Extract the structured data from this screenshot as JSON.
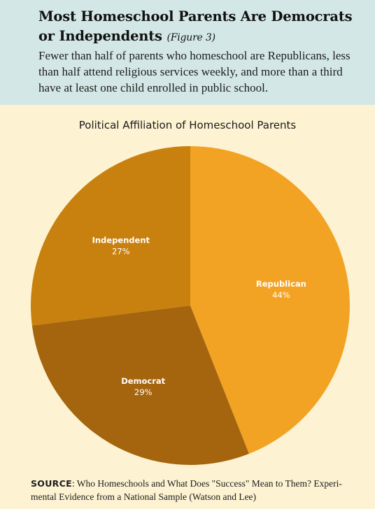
{
  "header": {
    "title": "Most Homeschool Parents Are Democrats or Independents",
    "figure_tag": "(Figure 3)",
    "subtitle": "Fewer than half of parents who homeschool are Republicans, less than half attend religious services weekly, and more than a third have at least one child enrolled in public school."
  },
  "chart_data": {
    "type": "pie",
    "title": "Political Affiliation of Homeschool Parents",
    "slices": [
      {
        "label": "Republican",
        "value": 44,
        "value_label": "44%",
        "color": "#f2a324"
      },
      {
        "label": "Democrat",
        "value": 29,
        "value_label": "29%",
        "color": "#a5650e"
      },
      {
        "label": "Independent",
        "value": 27,
        "value_label": "27%",
        "color": "#c8810f"
      }
    ]
  },
  "footer": {
    "source_label": "SOURCE",
    "source_text": ": Who Homeschools and What Does \"Success\" Mean to Them? Experi-mental Evidence from a National Sample (Watson and Lee)"
  }
}
